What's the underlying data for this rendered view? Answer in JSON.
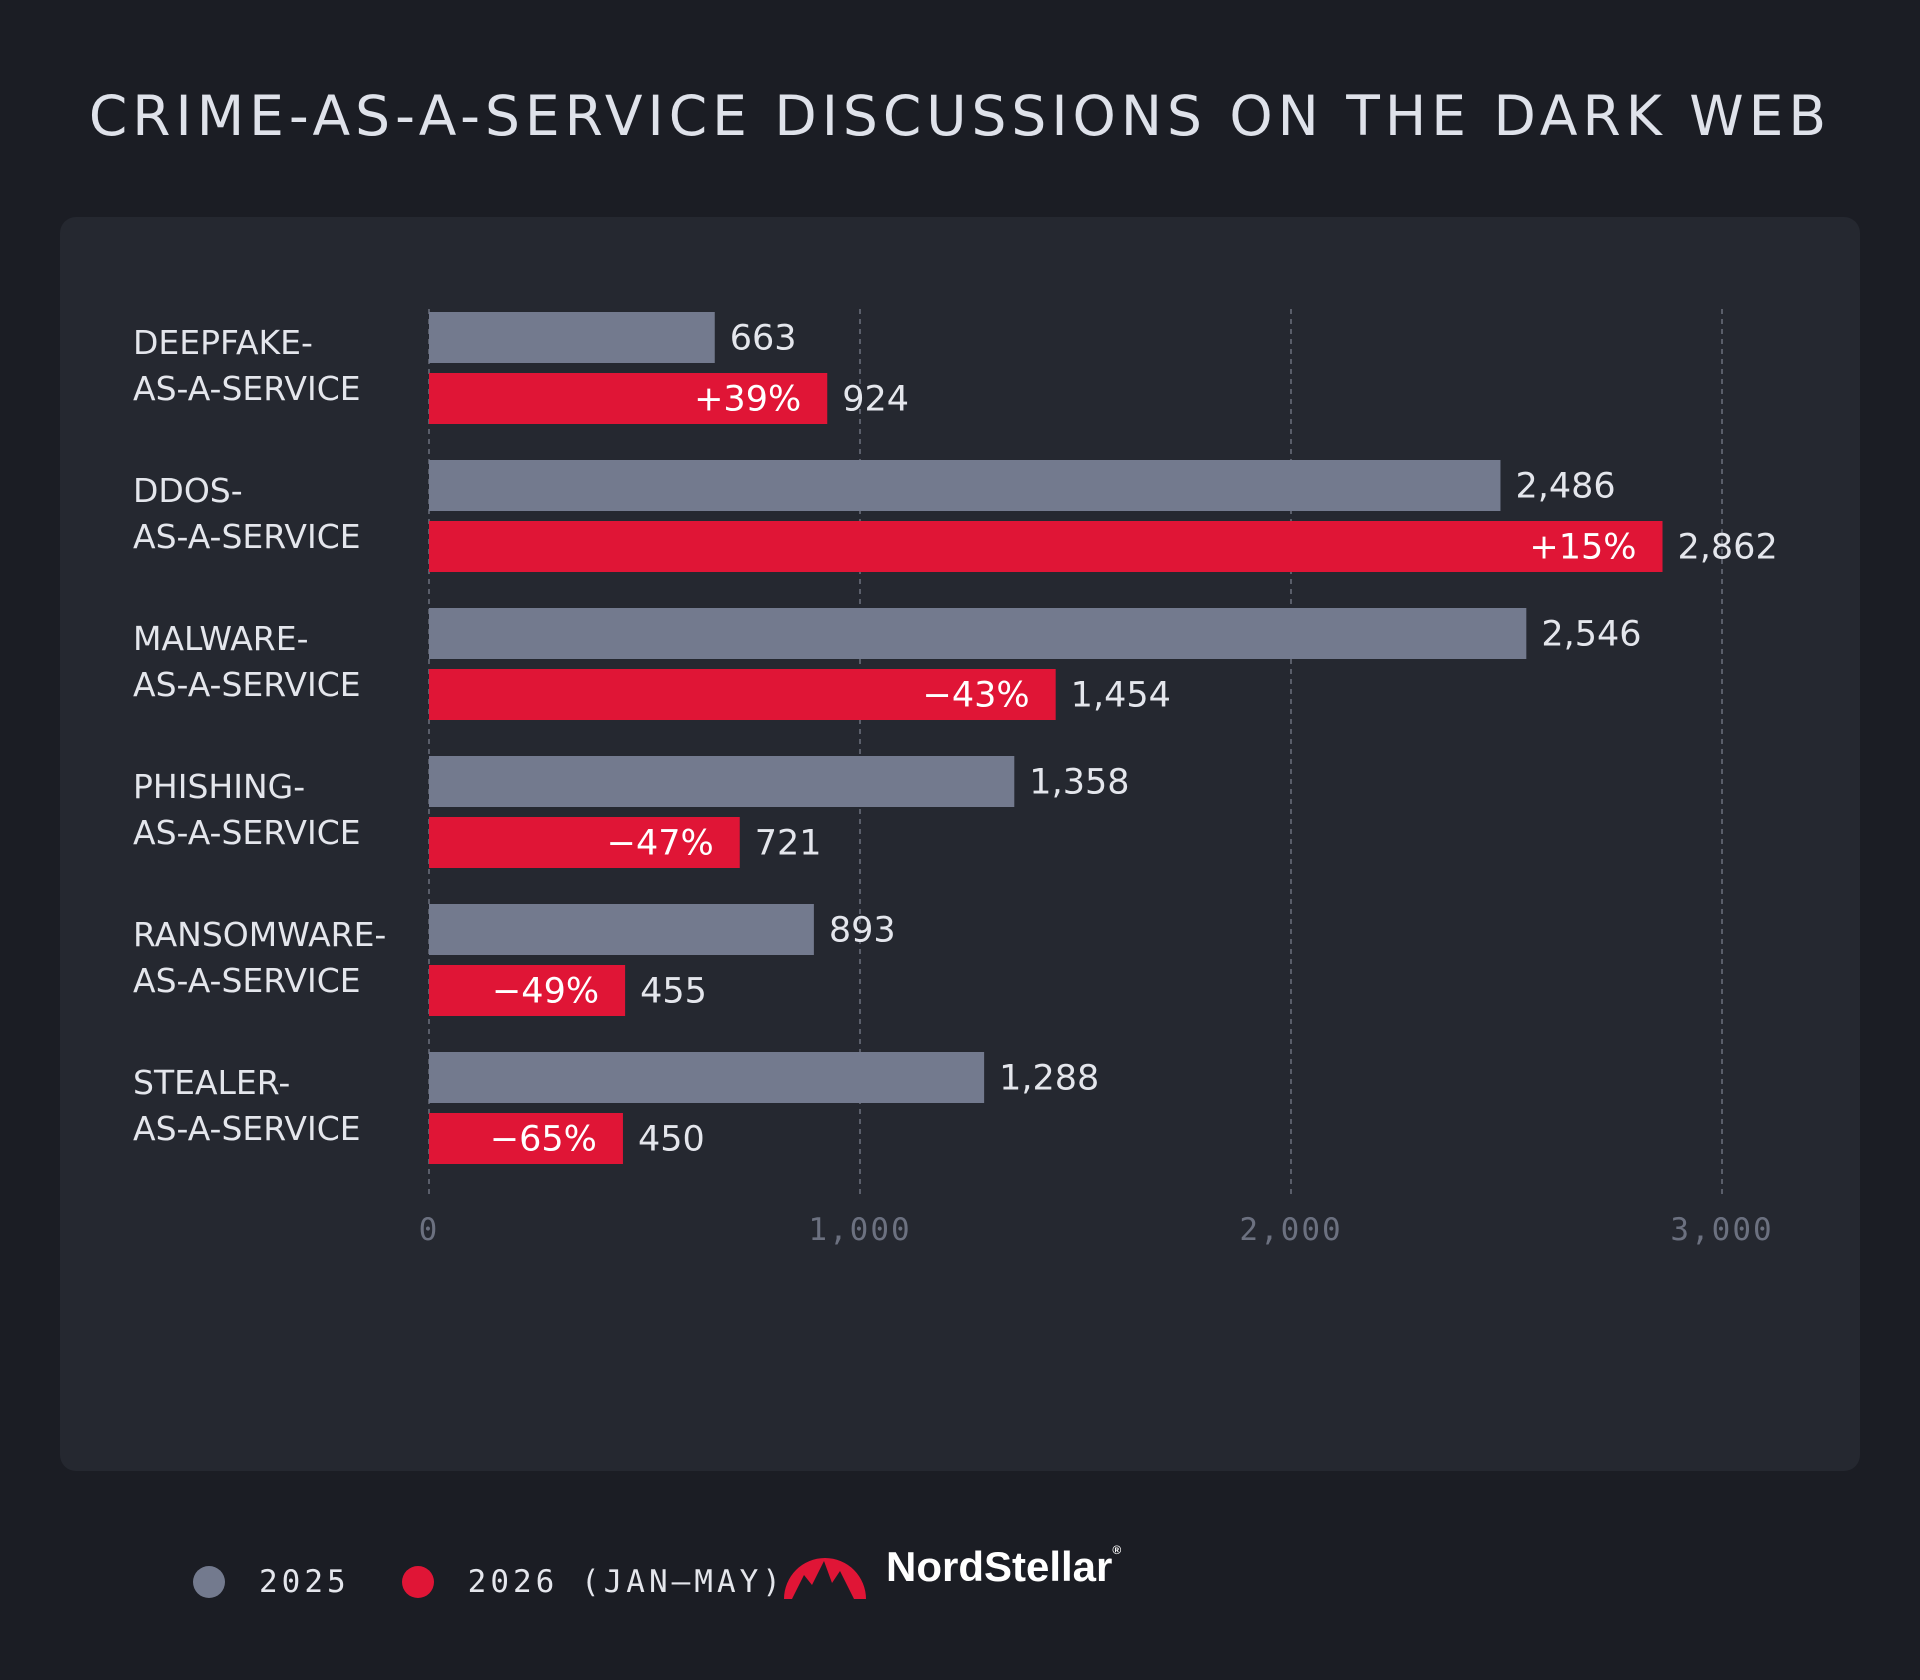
{
  "title": "CRIME-AS-A-SERVICE DISCUSSIONS ON THE DARK WEB",
  "colors": {
    "series_2025": "#737a8e",
    "series_2026": "#e01536",
    "background": "#1b1d24",
    "panel": "#252830"
  },
  "chart_data": {
    "type": "bar",
    "orientation": "horizontal",
    "categories": [
      [
        "DEEPFAKE-",
        "AS-A-SERVICE"
      ],
      [
        "DDOS-",
        "AS-A-SERVICE"
      ],
      [
        "MALWARE-",
        "AS-A-SERVICE"
      ],
      [
        "PHISHING-",
        "AS-A-SERVICE"
      ],
      [
        "RANSOMWARE-",
        "AS-A-SERVICE"
      ],
      [
        "STEALER-",
        "AS-A-SERVICE"
      ]
    ],
    "series": [
      {
        "name": "2025",
        "color": "#737a8e",
        "values": [
          663,
          2486,
          2546,
          1358,
          893,
          1288
        ],
        "value_labels": [
          "663",
          "2,486",
          "2,546",
          "1,358",
          "893",
          "1,288"
        ]
      },
      {
        "name": "2026 (JAN—MAY)",
        "color": "#e01536",
        "values": [
          924,
          2862,
          1454,
          721,
          455,
          450
        ],
        "value_labels": [
          "924",
          "2,862",
          "1,454",
          "721",
          "455",
          "450"
        ],
        "change_labels": [
          "+39%",
          "+15%",
          "−43%",
          "−47%",
          "−49%",
          "−65%"
        ]
      }
    ],
    "xlim": [
      0,
      3000
    ],
    "xticks": [
      0,
      1000,
      2000,
      3000
    ],
    "xtick_labels": [
      "0",
      "1,000",
      "2,000",
      "3,000"
    ],
    "grid": "vertical dashed",
    "legend_position": "bottom-left"
  },
  "brand": {
    "name": "NordStellar",
    "mark": "®"
  }
}
